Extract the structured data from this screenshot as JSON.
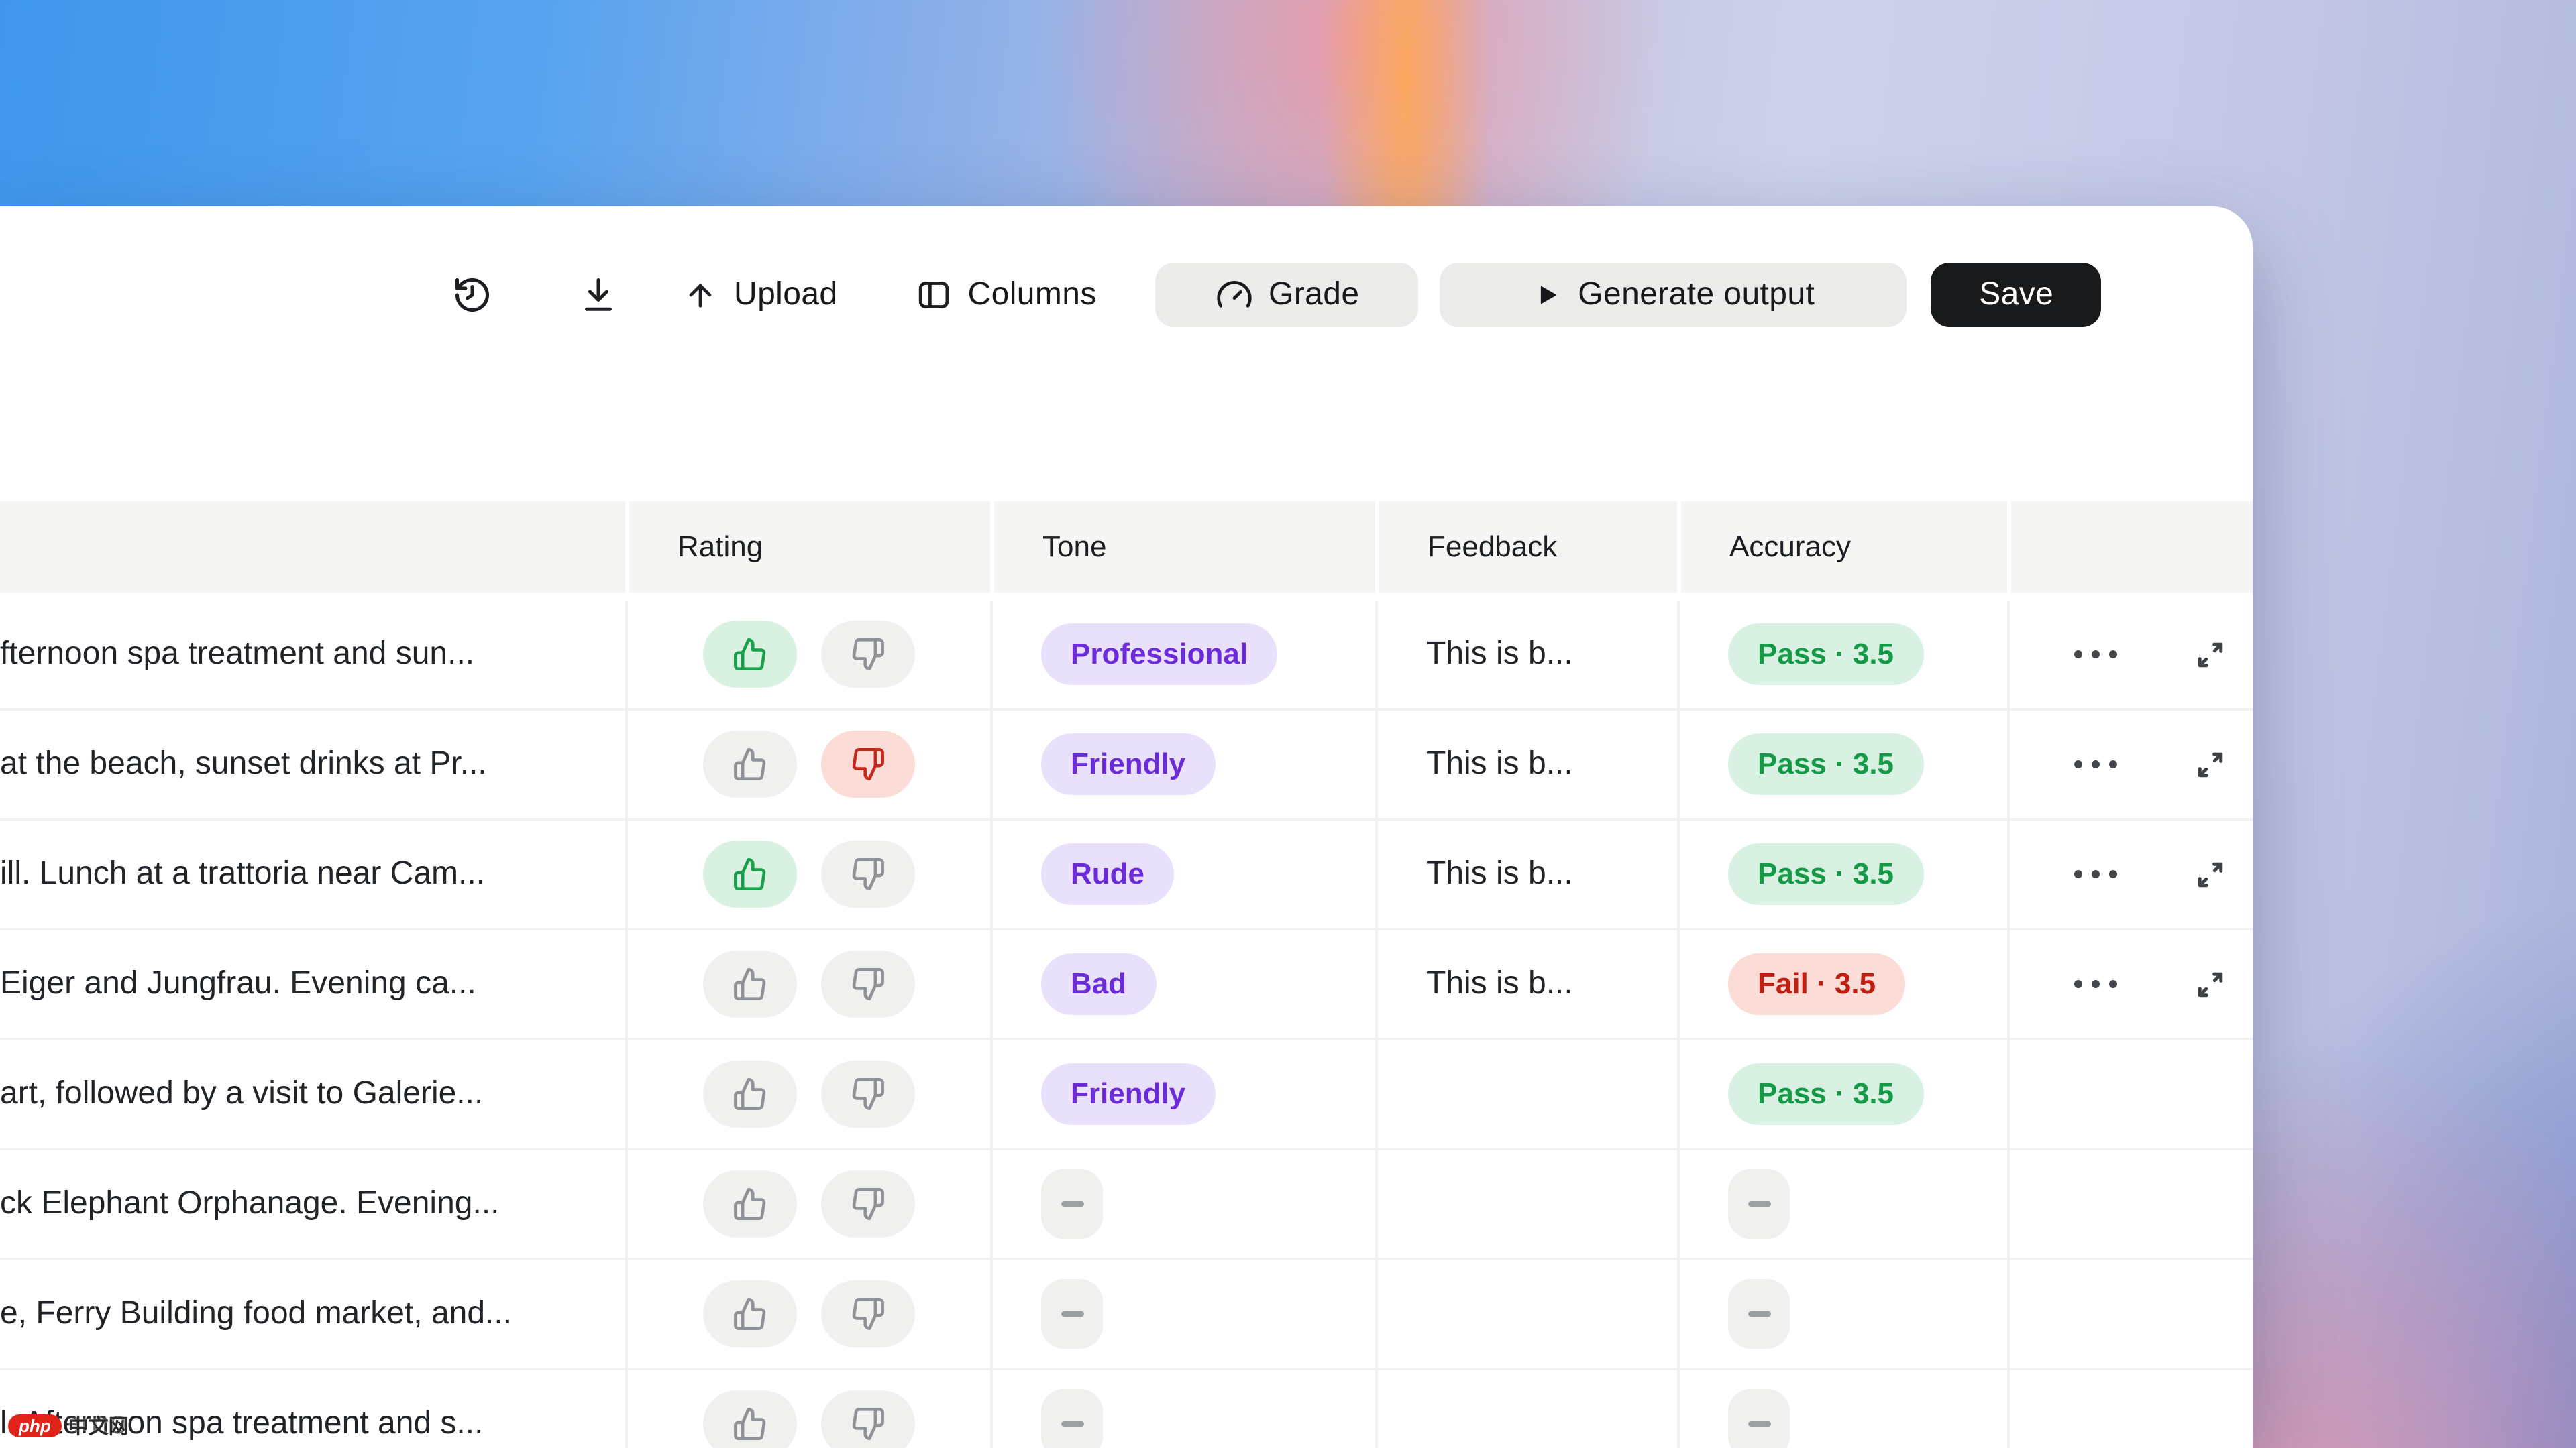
{
  "toolbar": {
    "upload_label": "Upload",
    "columns_label": "Columns",
    "grade_label": "Grade",
    "generate_label": "Generate output",
    "save_label": "Save",
    "icons": {
      "history": "history-icon",
      "download": "download-icon",
      "upload": "upload-arrow-icon",
      "columns": "columns-panel-icon",
      "grade": "gauge-icon",
      "generate": "play-icon"
    }
  },
  "table": {
    "headers": [
      "",
      "Rating",
      "Tone",
      "Feedback",
      "Accuracy",
      ""
    ],
    "rows": [
      {
        "input": "fternoon spa treatment and sun...",
        "rating": "up",
        "tone": "Professional",
        "feedback": "This is b...",
        "accuracy": {
          "label": "Pass · 3.5",
          "status": "pass"
        },
        "actions": true
      },
      {
        "input": "at the beach, sunset drinks at Pr...",
        "rating": "down",
        "tone": "Friendly",
        "feedback": "This is b...",
        "accuracy": {
          "label": "Pass · 3.5",
          "status": "pass"
        },
        "actions": true
      },
      {
        "input": "ill. Lunch at a trattoria near Cam...",
        "rating": "up",
        "tone": "Rude",
        "feedback": "This is b...",
        "accuracy": {
          "label": "Pass · 3.5",
          "status": "pass"
        },
        "actions": true
      },
      {
        "input": "Eiger and Jungfrau. Evening ca...",
        "rating": "none",
        "tone": "Bad",
        "feedback": "This is b...",
        "accuracy": {
          "label": "Fail · 3.5",
          "status": "fail"
        },
        "actions": true
      },
      {
        "input": "art, followed by a visit to Galerie...",
        "rating": "none",
        "tone": "Friendly",
        "feedback": "",
        "accuracy": {
          "label": "Pass · 3.5",
          "status": "pass"
        },
        "actions": false
      },
      {
        "input": "ck Elephant Orphanage. Evening...",
        "rating": "none",
        "tone": null,
        "feedback": "",
        "accuracy": null,
        "actions": false
      },
      {
        "input": "e, Ferry Building food market, and...",
        "rating": "none",
        "tone": null,
        "feedback": "",
        "accuracy": null,
        "actions": false
      },
      {
        "input": "l. Afternoon spa treatment and s...",
        "rating": "none",
        "tone": null,
        "feedback": "",
        "accuracy": null,
        "actions": false
      }
    ]
  },
  "watermark": {
    "badge": "php",
    "text": "中文网"
  },
  "colors": {
    "tone_badge_bg": "#e9e1fc",
    "tone_badge_text": "#6c2bd9",
    "pass_badge_bg": "#d9f1e2",
    "pass_badge_text": "#149a46",
    "fail_badge_bg": "#fcdcd6",
    "fail_badge_text": "#bf1e10",
    "thumb_up_active": "#18a04b",
    "thumb_down_active": "#c5281c",
    "save_button_bg": "#191a1b",
    "header_bg": "#f5f5f4"
  }
}
